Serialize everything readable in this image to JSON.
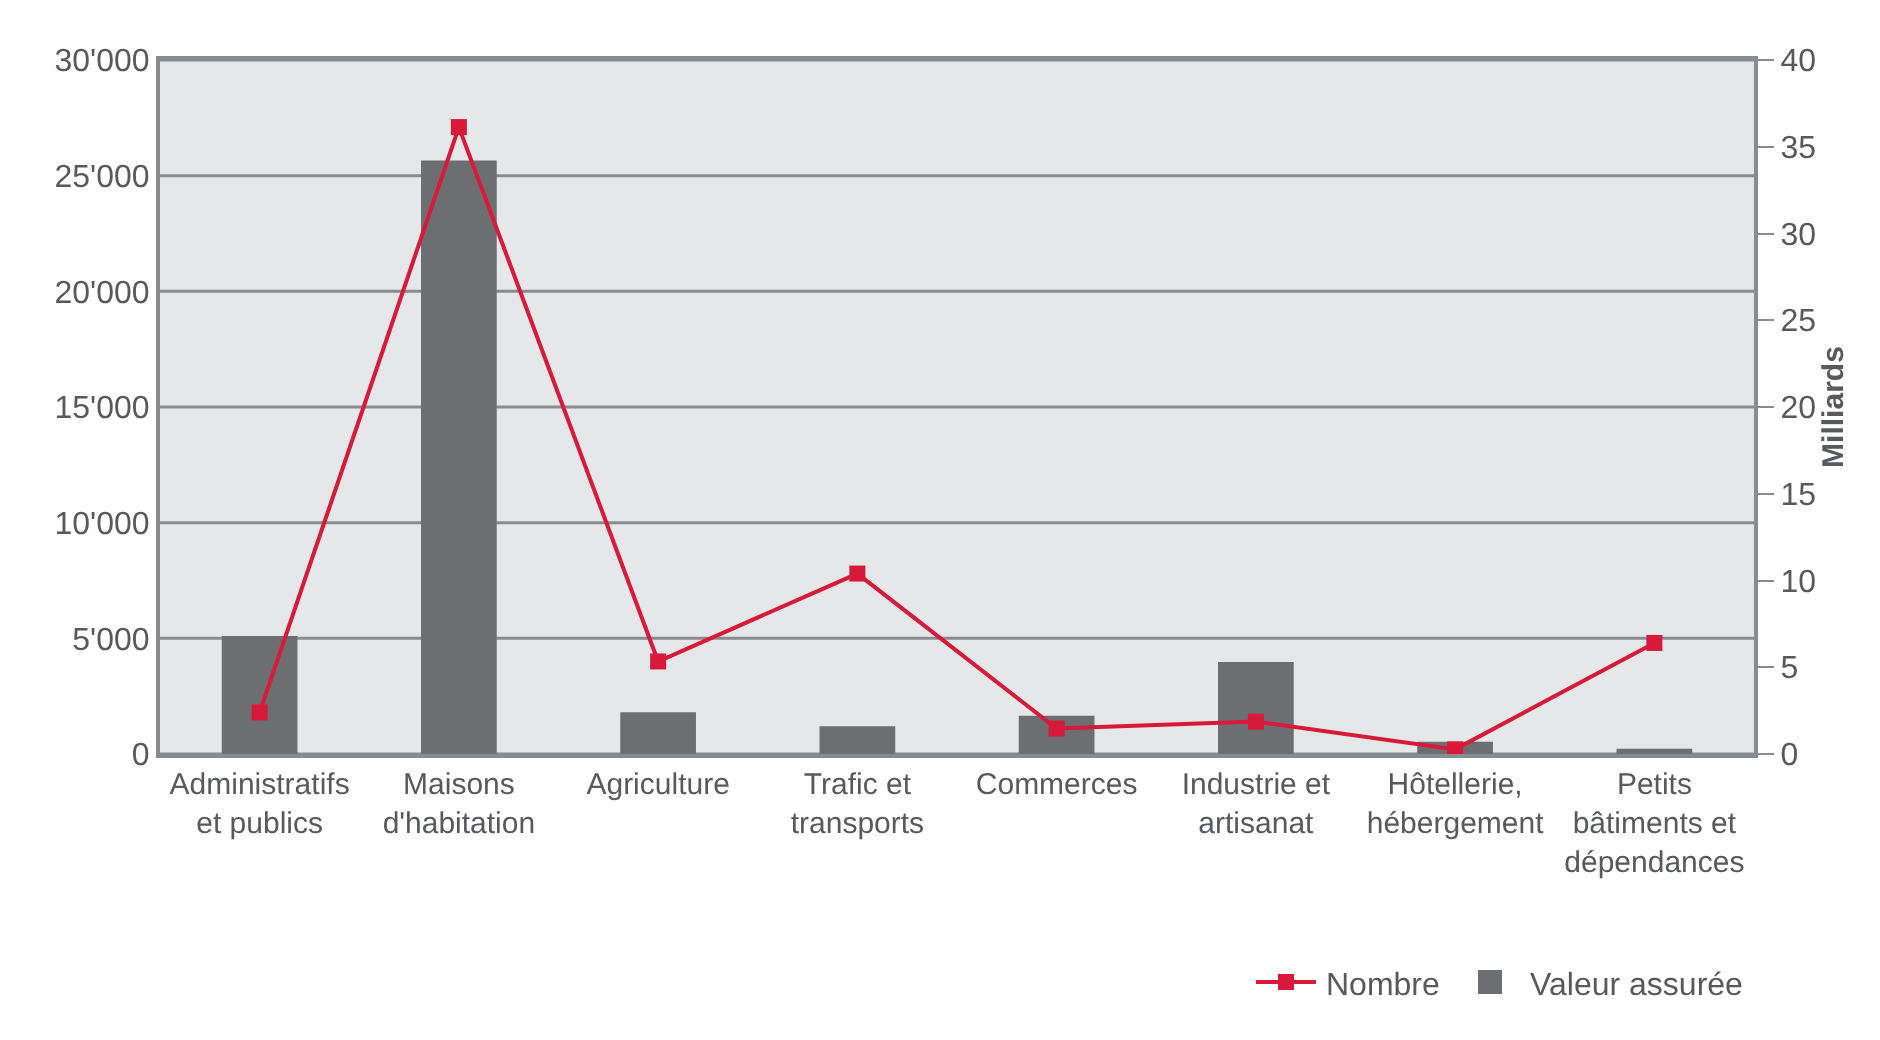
{
  "chart_data": {
    "type": "bar",
    "categories": [
      "Administratifs\net publics",
      "Maisons\nd'habitation",
      "Agriculture",
      "Trafic et\ntransports",
      "Commerces",
      "Industrie et\nartisanat",
      "Hôtellerie,\nhébergement",
      "Petits\nbâtiments et\ndépendances"
    ],
    "series": [
      {
        "name": "Nombre",
        "type": "line",
        "color": "#d7193a",
        "marker": "square",
        "line_style": "solid",
        "values": [
          1800,
          27100,
          4000,
          7800,
          1100,
          1400,
          200,
          4800
        ]
      },
      {
        "name": "Valeur assurée",
        "axis": "y2",
        "color": "#6d6e71",
        "values": [
          6.8,
          34.2,
          2.4,
          1.6,
          2.2,
          5.3,
          0.7,
          0.3
        ]
      }
    ],
    "ylim": [
      0,
      30000
    ],
    "yticks": [
      {
        "value": 0,
        "label": "0"
      },
      {
        "value": 5000,
        "label": "5'000"
      },
      {
        "value": 10000,
        "label": "10'000"
      },
      {
        "value": 15000,
        "label": "15'000"
      },
      {
        "value": 20000,
        "label": "20'000"
      },
      {
        "value": 25000,
        "label": "25'000"
      },
      {
        "value": 30000,
        "label": "30'000"
      }
    ],
    "y2label": "Milliards",
    "y2lim": [
      0,
      40
    ],
    "y2ticks": [
      0,
      5,
      10,
      15,
      20,
      25,
      30,
      35,
      40
    ],
    "grid": "y",
    "legend": "bottom right"
  }
}
